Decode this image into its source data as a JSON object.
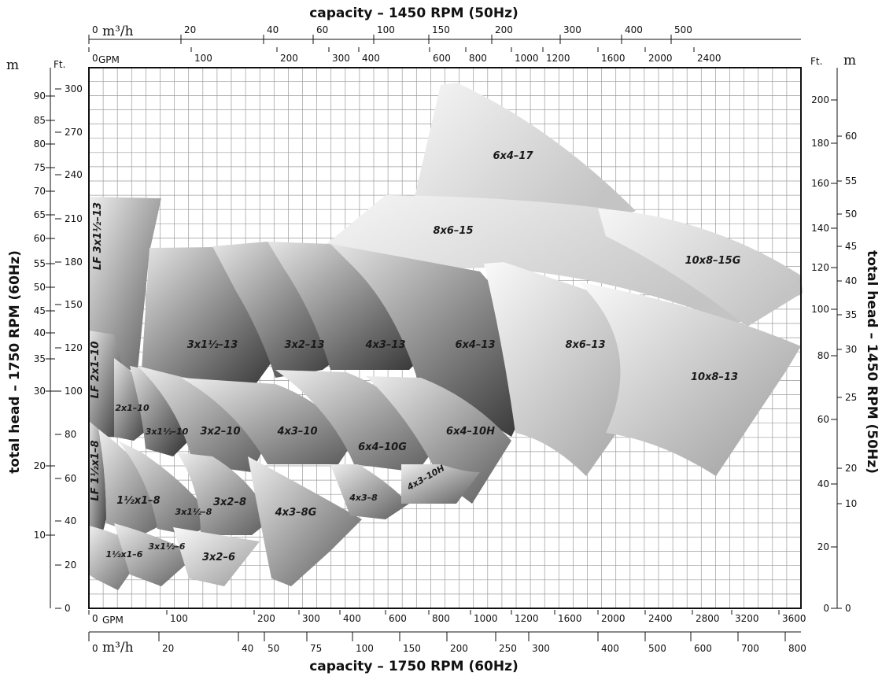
{
  "chart_data": {
    "type": "area",
    "subtype": "pump selection coverage chart",
    "title_top": "capacity – 1450 RPM (50Hz)",
    "title_bottom": "capacity – 1750 RPM (60Hz)",
    "ylabel_left": "total head – 1750 RPM (60Hz)",
    "ylabel_right": "total head – 1450 RPM (50Hz)",
    "unit_m3h": "m³/h",
    "unit_gpm": "GPM",
    "unit_m": "m",
    "unit_ft": "Ft.",
    "grid": true,
    "x_gpm_60hz_range": [
      0,
      3800
    ],
    "y_ft_60hz_range": [
      0,
      310
    ],
    "axes": {
      "top_m3h": [
        "0",
        "20",
        "40",
        "60",
        "100",
        "150",
        "200",
        "300",
        "400",
        "500"
      ],
      "top_gpm": [
        "0",
        "100",
        "200",
        "300",
        "400",
        "600",
        "800",
        "1000",
        "1200",
        "1600",
        "2000",
        "2400"
      ],
      "bottom_gpm": [
        "0",
        "100",
        "200",
        "300",
        "400",
        "600",
        "800",
        "1000",
        "1200",
        "1600",
        "2000",
        "2400",
        "2800",
        "3200",
        "3600"
      ],
      "bottom_m3h": [
        "0",
        "20",
        "40",
        "50",
        "75",
        "100",
        "150",
        "200",
        "250",
        "300",
        "400",
        "500",
        "600",
        "700",
        "800"
      ],
      "left_m": [
        "10",
        "20",
        "30",
        "35",
        "40",
        "45",
        "50",
        "55",
        "60",
        "65",
        "70",
        "75",
        "80",
        "85",
        "90"
      ],
      "left_ft": [
        "0",
        "20",
        "40",
        "60",
        "80",
        "100",
        "120",
        "150",
        "180",
        "210",
        "240",
        "270",
        "300"
      ],
      "right_ft": [
        "0",
        "20",
        "40",
        "60",
        "80",
        "100",
        "120",
        "140",
        "160",
        "180",
        "200"
      ],
      "right_m": [
        "0",
        "10",
        "20",
        "25",
        "30",
        "35",
        "40",
        "45",
        "50",
        "55",
        "60"
      ]
    },
    "series": [
      {
        "name": "6x4–17",
        "gpm": [
          750,
          2000
        ],
        "head_ft": [
          225,
          305
        ]
      },
      {
        "name": "8x6–15",
        "gpm": [
          560,
          2000
        ],
        "head_ft": [
          170,
          225
        ]
      },
      {
        "name": "10x8–15G",
        "gpm": [
          1600,
          3500
        ],
        "head_ft": [
          130,
          205
        ]
      },
      {
        "name": "LF 3x1½–13",
        "gpm": [
          0,
          60
        ],
        "head_ft": [
          110,
          230
        ]
      },
      {
        "name": "3x1½–13",
        "gpm": [
          50,
          300
        ],
        "head_ft": [
          110,
          190
        ]
      },
      {
        "name": "3x2–13",
        "gpm": [
          150,
          500
        ],
        "head_ft": [
          110,
          195
        ]
      },
      {
        "name": "4x3–13",
        "gpm": [
          250,
          800
        ],
        "head_ft": [
          105,
          195
        ]
      },
      {
        "name": "6x4–13",
        "gpm": [
          400,
          1100
        ],
        "head_ft": [
          100,
          195
        ]
      },
      {
        "name": "8x6–13",
        "gpm": [
          800,
          2000
        ],
        "head_ft": [
          70,
          185
        ]
      },
      {
        "name": "10x8–13",
        "gpm": [
          1200,
          3700
        ],
        "head_ft": [
          70,
          180
        ]
      },
      {
        "name": "LF 2x1–10",
        "gpm": [
          0,
          40
        ],
        "head_ft": [
          80,
          140
        ]
      },
      {
        "name": "2x1–10",
        "gpm": [
          30,
          130
        ],
        "head_ft": [
          75,
          130
        ]
      },
      {
        "name": "3x1½–10",
        "gpm": [
          50,
          200
        ],
        "head_ft": [
          60,
          110
        ]
      },
      {
        "name": "3x2–10",
        "gpm": [
          80,
          350
        ],
        "head_ft": [
          55,
          115
        ]
      },
      {
        "name": "4x3–10",
        "gpm": [
          250,
          600
        ],
        "head_ft": [
          60,
          115
        ]
      },
      {
        "name": "6x4–10G",
        "gpm": [
          280,
          800
        ],
        "head_ft": [
          50,
          110
        ]
      },
      {
        "name": "6x4–10H",
        "gpm": [
          350,
          1100
        ],
        "head_ft": [
          60,
          110
        ]
      },
      {
        "name": "LF 1½x1–8",
        "gpm": [
          0,
          40
        ],
        "head_ft": [
          30,
          90
        ]
      },
      {
        "name": "1½x1–8",
        "gpm": [
          20,
          110
        ],
        "head_ft": [
          30,
          80
        ]
      },
      {
        "name": "3x1½–8",
        "gpm": [
          40,
          180
        ],
        "head_ft": [
          30,
          70
        ]
      },
      {
        "name": "3x2–8",
        "gpm": [
          80,
          270
        ],
        "head_ft": [
          25,
          70
        ]
      },
      {
        "name": "4x3–8G",
        "gpm": [
          130,
          500
        ],
        "head_ft": [
          15,
          70
        ]
      },
      {
        "name": "4x3–8",
        "gpm": [
          280,
          700
        ],
        "head_ft": [
          40,
          65
        ]
      },
      {
        "name": "4x3–10H",
        "gpm": [
          350,
          900
        ],
        "head_ft": [
          40,
          70
        ]
      },
      {
        "name": "1½x1–6",
        "gpm": [
          10,
          80
        ],
        "head_ft": [
          10,
          35
        ]
      },
      {
        "name": "3x1½–6",
        "gpm": [
          40,
          130
        ],
        "head_ft": [
          10,
          35
        ]
      },
      {
        "name": "3x2–6",
        "gpm": [
          60,
          210
        ],
        "head_ft": [
          10,
          35
        ]
      }
    ]
  }
}
